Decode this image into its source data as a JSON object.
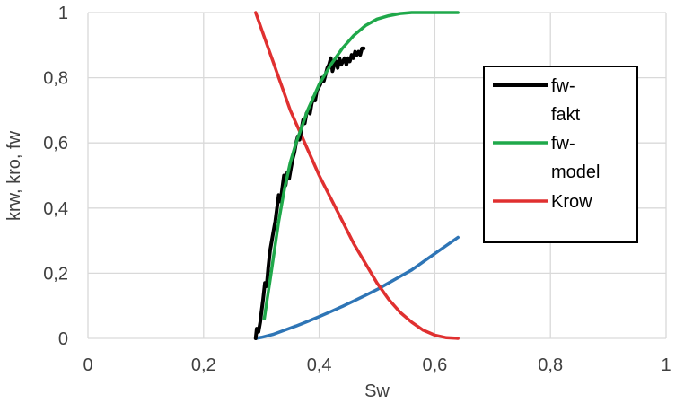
{
  "chart_data": {
    "type": "line",
    "title": "",
    "xlabel": "Sw",
    "ylabel": "krw, kro, fw",
    "xlim": [
      0,
      1
    ],
    "ylim": [
      0,
      1
    ],
    "x_ticks": [
      0,
      0.2,
      0.4,
      0.6,
      0.8,
      1
    ],
    "y_ticks": [
      0,
      0.2,
      0.4,
      0.6,
      0.8,
      1
    ],
    "x_tick_labels": [
      "0",
      "0,2",
      "0,4",
      "0,6",
      "0,8",
      "1"
    ],
    "y_tick_labels": [
      "0",
      "0,2",
      "0,4",
      "0,6",
      "0,8",
      "1"
    ],
    "grid": true,
    "legend_position": "right",
    "series": [
      {
        "name": "fw-fakt",
        "legend_lines": [
          "fw-",
          "fakt"
        ],
        "color": "#000000",
        "x": [
          0.29,
          0.292,
          0.295,
          0.298,
          0.3,
          0.303,
          0.306,
          0.309,
          0.312,
          0.315,
          0.318,
          0.321,
          0.324,
          0.327,
          0.33,
          0.333,
          0.336,
          0.339,
          0.342,
          0.345,
          0.348,
          0.351,
          0.354,
          0.357,
          0.36,
          0.363,
          0.366,
          0.369,
          0.372,
          0.375,
          0.378,
          0.381,
          0.384,
          0.387,
          0.39,
          0.393,
          0.396,
          0.399,
          0.402,
          0.405,
          0.408,
          0.411,
          0.414,
          0.417,
          0.42,
          0.423,
          0.426,
          0.429,
          0.432,
          0.435,
          0.438,
          0.441,
          0.444,
          0.447,
          0.45,
          0.453,
          0.456,
          0.459,
          0.462,
          0.465,
          0.468,
          0.471,
          0.474,
          0.477
        ],
        "y": [
          0.0,
          0.03,
          0.02,
          0.05,
          0.08,
          0.12,
          0.17,
          0.16,
          0.22,
          0.27,
          0.3,
          0.33,
          0.36,
          0.4,
          0.44,
          0.42,
          0.46,
          0.5,
          0.47,
          0.51,
          0.49,
          0.52,
          0.55,
          0.57,
          0.6,
          0.62,
          0.61,
          0.64,
          0.67,
          0.66,
          0.69,
          0.7,
          0.69,
          0.72,
          0.74,
          0.73,
          0.76,
          0.77,
          0.78,
          0.8,
          0.79,
          0.81,
          0.83,
          0.84,
          0.86,
          0.82,
          0.84,
          0.85,
          0.83,
          0.86,
          0.84,
          0.85,
          0.86,
          0.84,
          0.86,
          0.85,
          0.87,
          0.86,
          0.88,
          0.87,
          0.88,
          0.87,
          0.89,
          0.89
        ],
        "stroke_width": 4
      },
      {
        "name": "fw-model",
        "legend_lines": [
          "fw-",
          "model"
        ],
        "color": "#1fa84a",
        "x": [
          0.305,
          0.31,
          0.315,
          0.32,
          0.325,
          0.33,
          0.335,
          0.34,
          0.345,
          0.35,
          0.36,
          0.37,
          0.38,
          0.39,
          0.4,
          0.42,
          0.44,
          0.46,
          0.48,
          0.5,
          0.52,
          0.54,
          0.56,
          0.58,
          0.6,
          0.62,
          0.64
        ],
        "y": [
          0.06,
          0.12,
          0.18,
          0.24,
          0.3,
          0.36,
          0.41,
          0.46,
          0.5,
          0.54,
          0.6,
          0.65,
          0.7,
          0.74,
          0.78,
          0.84,
          0.89,
          0.93,
          0.96,
          0.98,
          0.99,
          0.997,
          1.0,
          1.0,
          1.0,
          1.0,
          1.0
        ],
        "stroke_width": 3.5
      },
      {
        "name": "Krow",
        "legend_lines": [
          "Krow"
        ],
        "color": "#e03030",
        "x": [
          0.29,
          0.3,
          0.31,
          0.32,
          0.33,
          0.34,
          0.35,
          0.36,
          0.37,
          0.38,
          0.39,
          0.4,
          0.42,
          0.44,
          0.46,
          0.48,
          0.5,
          0.52,
          0.54,
          0.56,
          0.58,
          0.6,
          0.62,
          0.64
        ],
        "y": [
          1.0,
          0.95,
          0.9,
          0.85,
          0.8,
          0.75,
          0.7,
          0.66,
          0.62,
          0.58,
          0.54,
          0.5,
          0.43,
          0.36,
          0.29,
          0.23,
          0.17,
          0.12,
          0.08,
          0.05,
          0.025,
          0.01,
          0.002,
          0.0
        ],
        "stroke_width": 3.5
      },
      {
        "name": "krw",
        "legend_lines": [],
        "color": "#2e75b6",
        "x": [
          0.29,
          0.3,
          0.32,
          0.34,
          0.36,
          0.38,
          0.4,
          0.42,
          0.44,
          0.46,
          0.48,
          0.5,
          0.52,
          0.54,
          0.56,
          0.58,
          0.6,
          0.62,
          0.64
        ],
        "y": [
          0.0,
          0.003,
          0.012,
          0.025,
          0.038,
          0.052,
          0.067,
          0.082,
          0.098,
          0.115,
          0.132,
          0.15,
          0.17,
          0.19,
          0.21,
          0.235,
          0.26,
          0.285,
          0.31
        ],
        "stroke_width": 3.5
      }
    ]
  }
}
